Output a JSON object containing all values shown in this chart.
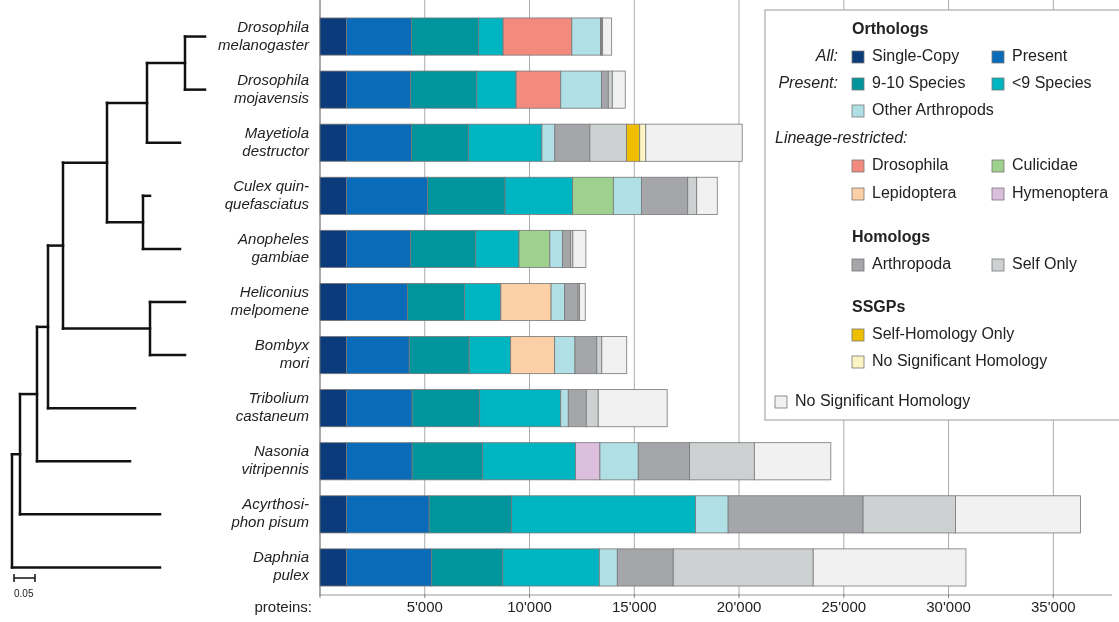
{
  "chart_data": {
    "type": "bar",
    "orientation": "horizontal",
    "stacked": true,
    "xlabel": "proteins:",
    "categories": [
      "Drosophila\nmelanogaster",
      "Drosophila\nmojavensis",
      "Mayetiola\ndestructor",
      "Culex quin-\nquefasciatus",
      "Anopheles\ngambiae",
      "Heliconius\nmelpomene",
      "Bombyx\nmori",
      "Tribolium\ncastaneum",
      "Nasonia\nvitripennis",
      "Acyrthosi-\nphon pisum",
      "Daphnia\npulex"
    ],
    "series": [
      {
        "name": "Single-Copy",
        "color": "#0b3b7a",
        "values": [
          1270,
          1270,
          1270,
          1270,
          1270,
          1270,
          1270,
          1270,
          1270,
          1270,
          1270
        ]
      },
      {
        "name": "Present",
        "color": "#0a6cb8",
        "values": [
          3100,
          3060,
          3100,
          3870,
          3060,
          2910,
          2990,
          3130,
          3130,
          3940,
          4060
        ]
      },
      {
        "name": "9-10 Species",
        "color": "#00959c",
        "values": [
          3200,
          3150,
          2720,
          3690,
          3100,
          2720,
          2860,
          3220,
          3360,
          3930,
          3390
        ]
      },
      {
        "name": "<9 Species",
        "color": "#00b5c2",
        "values": [
          1170,
          1880,
          3500,
          3230,
          2070,
          1730,
          1980,
          3870,
          4440,
          8780,
          4610
        ]
      },
      {
        "name": "Drosophila",
        "color": "#f28b7e",
        "values": [
          3280,
          2130,
          null,
          null,
          null,
          null,
          null,
          null,
          null,
          null,
          null
        ]
      },
      {
        "name": "Culicidae",
        "color": "#9fd18e",
        "values": [
          null,
          null,
          null,
          1940,
          1470,
          null,
          null,
          null,
          null,
          null,
          null
        ]
      },
      {
        "name": "Lepidoptera",
        "color": "#fbd0a6",
        "values": [
          null,
          null,
          null,
          null,
          null,
          2400,
          2100,
          null,
          null,
          null,
          null
        ]
      },
      {
        "name": "Hymenoptera",
        "color": "#dcbfdc",
        "values": [
          null,
          null,
          null,
          null,
          null,
          null,
          null,
          null,
          1160,
          null,
          null
        ]
      },
      {
        "name": "Other Arthropods",
        "color": "#b0dfe5",
        "values": [
          1370,
          1940,
          620,
          1340,
          600,
          650,
          970,
          360,
          1830,
          1560,
          860
        ]
      },
      {
        "name": "Arthropoda",
        "color": "#a5a6a9",
        "values": [
          60,
          330,
          1670,
          2210,
          380,
          640,
          1040,
          860,
          2450,
          6440,
          2670
        ]
      },
      {
        "name": "Self Only",
        "color": "#cdd1d2",
        "values": [
          40,
          190,
          1750,
          430,
          120,
          70,
          240,
          570,
          3090,
          4410,
          6680
        ]
      },
      {
        "name": "Self-Homology Only",
        "color": "#f0be00",
        "values": [
          null,
          null,
          630,
          null,
          null,
          null,
          null,
          null,
          null,
          null,
          null
        ]
      },
      {
        "name": "No Significant Homology",
        "color": "#fbf5c4",
        "values": [
          null,
          null,
          290,
          null,
          null,
          null,
          null,
          null,
          null,
          null,
          null
        ]
      },
      {
        "name": "No Significant Homology",
        "color": "#f1f1f1",
        "values": [
          430,
          620,
          4600,
          980,
          620,
          270,
          1190,
          3290,
          3650,
          5970,
          7290
        ]
      }
    ],
    "xlim": [
      0,
      37800
    ],
    "xticks": [
      {
        "value": 0,
        "label": null
      },
      {
        "value": 5000,
        "label": "5'000"
      },
      {
        "value": 10000,
        "label": "10'000"
      },
      {
        "value": 15000,
        "label": "15'000"
      },
      {
        "value": 20000,
        "label": "20'000"
      },
      {
        "value": 25000,
        "label": "25'000"
      },
      {
        "value": 30000,
        "label": "30'000"
      },
      {
        "value": 35000,
        "label": "35'000"
      }
    ],
    "grid": "x",
    "legend": "top right",
    "annotations": [
      "Orthologs",
      "All:",
      "Present:",
      "Lineage-restricted:",
      "Homologs",
      "SSGPs",
      "0.05"
    ]
  }
}
